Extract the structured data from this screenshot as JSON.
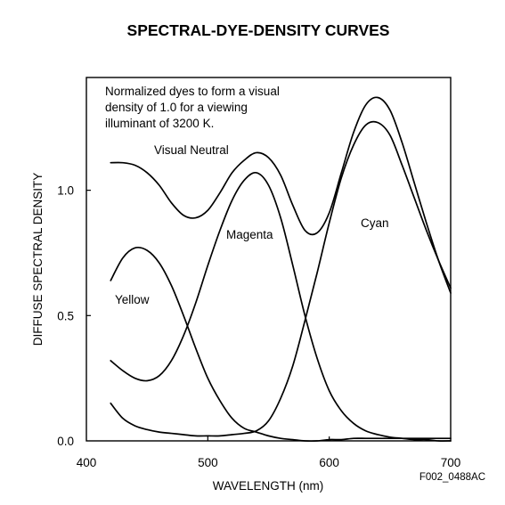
{
  "chart_data": {
    "type": "line",
    "title": "SPECTRAL-DYE-DENSITY CURVES",
    "xlabel": "WAVELENGTH (nm)",
    "ylabel": "DIFFUSE SPECTRAL DENSITY",
    "xlim": [
      400,
      700
    ],
    "ylim": [
      0,
      1.45
    ],
    "x_ticks": [
      "400",
      "500",
      "600",
      "700"
    ],
    "y_ticks": [
      "0.0",
      "0.5",
      "1.0"
    ],
    "grid": false,
    "note_lines": [
      "Normalized dyes to form a visual",
      "density of 1.0 for a viewing",
      "illuminant of 3200 K."
    ],
    "figure_id": "F002_0488AC",
    "series": [
      {
        "name": "Visual Neutral",
        "x": [
          420,
          430,
          440,
          450,
          460,
          470,
          480,
          490,
          500,
          510,
          520,
          530,
          540,
          550,
          560,
          570,
          580,
          590,
          600,
          610,
          620,
          630,
          640,
          650,
          660,
          670,
          680,
          690,
          700
        ],
        "values": [
          1.11,
          1.11,
          1.1,
          1.07,
          1.02,
          0.95,
          0.9,
          0.89,
          0.92,
          0.99,
          1.07,
          1.12,
          1.15,
          1.13,
          1.06,
          0.94,
          0.84,
          0.83,
          0.91,
          1.07,
          1.23,
          1.34,
          1.37,
          1.32,
          1.19,
          1.03,
          0.87,
          0.72,
          0.59
        ]
      },
      {
        "name": "Magenta",
        "x": [
          420,
          430,
          440,
          450,
          460,
          470,
          480,
          490,
          500,
          510,
          520,
          530,
          540,
          550,
          560,
          570,
          580,
          590,
          600,
          610,
          620,
          630,
          640,
          650,
          660,
          670,
          680,
          690,
          700
        ],
        "values": [
          0.32,
          0.28,
          0.25,
          0.24,
          0.26,
          0.32,
          0.42,
          0.55,
          0.7,
          0.84,
          0.96,
          1.04,
          1.07,
          1.02,
          0.89,
          0.7,
          0.5,
          0.33,
          0.2,
          0.12,
          0.07,
          0.04,
          0.025,
          0.015,
          0.01,
          0.005,
          0.005,
          0.0,
          0.0
        ]
      },
      {
        "name": "Cyan",
        "x": [
          420,
          430,
          440,
          450,
          460,
          470,
          480,
          490,
          500,
          510,
          520,
          530,
          540,
          550,
          560,
          570,
          580,
          590,
          600,
          610,
          620,
          630,
          640,
          650,
          660,
          670,
          680,
          690,
          700
        ],
        "values": [
          0.15,
          0.09,
          0.06,
          0.045,
          0.035,
          0.03,
          0.025,
          0.02,
          0.02,
          0.02,
          0.025,
          0.03,
          0.04,
          0.08,
          0.17,
          0.3,
          0.48,
          0.67,
          0.87,
          1.05,
          1.18,
          1.26,
          1.27,
          1.22,
          1.1,
          0.97,
          0.84,
          0.72,
          0.61
        ]
      },
      {
        "name": "Yellow",
        "x": [
          420,
          430,
          440,
          450,
          460,
          470,
          480,
          490,
          500,
          510,
          520,
          530,
          540,
          550,
          560,
          570,
          580,
          590,
          600,
          610,
          620,
          630,
          640,
          650,
          660,
          670,
          680,
          690,
          700
        ],
        "values": [
          0.64,
          0.73,
          0.77,
          0.76,
          0.71,
          0.62,
          0.5,
          0.37,
          0.25,
          0.16,
          0.09,
          0.05,
          0.035,
          0.02,
          0.01,
          0.005,
          0.0,
          0.0,
          0.005,
          0.005,
          0.01,
          0.01,
          0.01,
          0.01,
          0.01,
          0.01,
          0.01,
          0.01,
          0.01
        ]
      }
    ]
  }
}
